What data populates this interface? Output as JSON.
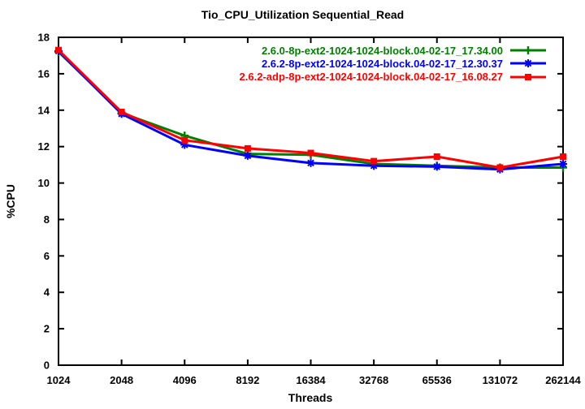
{
  "chart_data": {
    "type": "line",
    "title": "Tio_CPU_Utilization Sequential_Read",
    "xlabel": "Threads",
    "ylabel": "%CPU",
    "x_scale": "log2",
    "categories": [
      "1024",
      "2048",
      "4096",
      "8192",
      "16384",
      "32768",
      "65536",
      "131072",
      "262144"
    ],
    "y_ticks": [
      0,
      2,
      4,
      6,
      8,
      10,
      12,
      14,
      16,
      18
    ],
    "ylim": [
      0,
      18
    ],
    "grid": false,
    "legend_position": "top-right-inside",
    "axis_color": "#000000",
    "background_color": "#ffffff",
    "series": [
      {
        "name": "2.6.0-8p-ext2-1024-1024-block.04-02-17_17.34.00",
        "color": "#008000",
        "marker": "plus",
        "values": [
          17.2,
          13.85,
          12.6,
          11.6,
          11.55,
          11.05,
          10.95,
          10.85,
          10.85
        ]
      },
      {
        "name": "2.6.2-8p-ext2-1024-1024-block.04-02-17_12.30.37",
        "color": "#0000ff",
        "marker": "asterisk",
        "values": [
          17.25,
          13.8,
          12.1,
          11.5,
          11.1,
          10.95,
          10.9,
          10.75,
          11.05
        ]
      },
      {
        "name": "2.6.2-adp-8p-ext2-1024-1024-block.04-02-17_16.08.27",
        "color": "#ff0000",
        "marker": "square-filled",
        "values": [
          17.3,
          13.9,
          12.35,
          11.9,
          11.65,
          11.2,
          11.45,
          10.85,
          11.45
        ]
      }
    ]
  }
}
